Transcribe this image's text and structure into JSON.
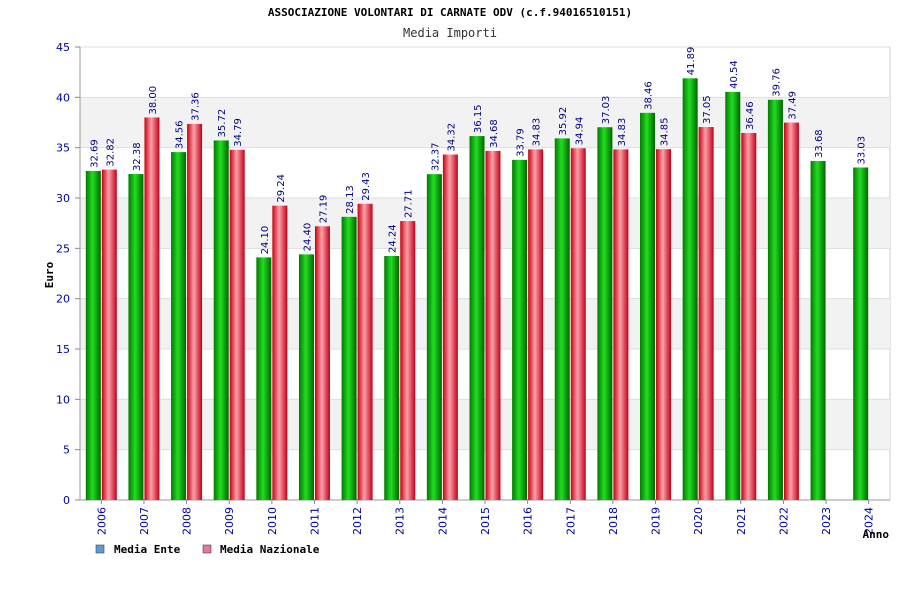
{
  "chart_data": {
    "type": "bar",
    "title": "ASSOCIAZIONE VOLONTARI DI CARNATE ODV (c.f.94016510151)",
    "subtitle": "Media Importi",
    "xlabel": "Anno",
    "ylabel": "Euro",
    "ylim": [
      0,
      45
    ],
    "yticks": [
      "0",
      "5",
      "10",
      "15",
      "20",
      "25",
      "30",
      "35",
      "40",
      "45"
    ],
    "grid": true,
    "legend_position": "bottom-left",
    "categories": [
      "2006",
      "2007",
      "2008",
      "2009",
      "2010",
      "2011",
      "2012",
      "2013",
      "2014",
      "2015",
      "2016",
      "2017",
      "2018",
      "2019",
      "2020",
      "2021",
      "2022",
      "2023",
      "2024"
    ],
    "series": [
      {
        "name": "Media Ente",
        "color": "#00a000",
        "legend_color": "#5b9bd5",
        "values": [
          32.69,
          32.38,
          34.56,
          35.72,
          24.1,
          24.4,
          28.13,
          24.24,
          32.37,
          36.15,
          33.79,
          35.92,
          37.03,
          38.46,
          41.89,
          40.54,
          39.76,
          33.68,
          33.03
        ],
        "labels": [
          "32.69",
          "32.38",
          "34.56",
          "35.72",
          "24.10",
          "24.40",
          "28.13",
          "24.24",
          "32.37",
          "36.15",
          "33.79",
          "35.92",
          "37.03",
          "38.46",
          "41.89",
          "40.54",
          "39.76",
          "33.68",
          "33.03"
        ]
      },
      {
        "name": "Media Nazionale",
        "color": "#e8202a",
        "legend_color": "#e377a0",
        "values": [
          32.82,
          38.0,
          37.36,
          34.79,
          29.24,
          27.19,
          29.43,
          27.71,
          34.32,
          34.68,
          34.83,
          34.94,
          34.83,
          34.85,
          37.05,
          36.46,
          37.49,
          null,
          null
        ],
        "labels": [
          "32.82",
          "38.00",
          "37.36",
          "34.79",
          "29.24",
          "27.19",
          "29.43",
          "27.71",
          "34.32",
          "34.68",
          "34.83",
          "34.94",
          "34.83",
          "34.85",
          "37.05",
          "36.46",
          "37.49",
          null,
          null
        ]
      }
    ]
  }
}
